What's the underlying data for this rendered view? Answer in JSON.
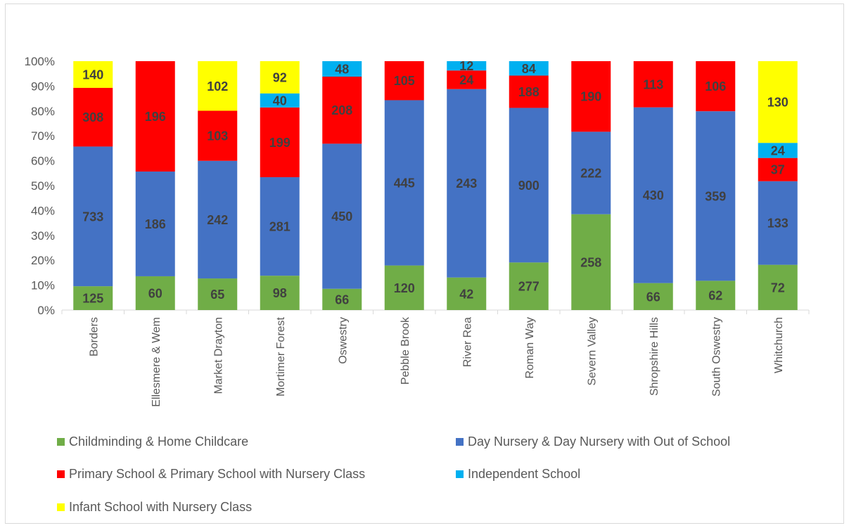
{
  "chart_data": {
    "type": "bar",
    "stacked": true,
    "normalized": true,
    "categories": [
      "Borders",
      "Ellesmere & Wem",
      "Market Drayton",
      "Mortimer Forest",
      "Oswestry",
      "Pebble Brook",
      "River Rea",
      "Roman Way",
      "Severn Valley",
      "Shropshire Hills",
      "South Oswestry",
      "Whitchurch"
    ],
    "series": [
      {
        "name": "Childminding & Home Childcare",
        "color": "#70ad47",
        "values": [
          125,
          60,
          65,
          98,
          66,
          120,
          42,
          277,
          258,
          66,
          62,
          72
        ]
      },
      {
        "name": "Day Nursery & Day Nursery with Out of School",
        "color": "#4472c4",
        "values": [
          733,
          186,
          242,
          281,
          450,
          445,
          243,
          900,
          222,
          430,
          359,
          133
        ]
      },
      {
        "name": "Primary School & Primary School with Nursery Class",
        "color": "#ff0000",
        "values": [
          308,
          196,
          103,
          199,
          208,
          105,
          24,
          188,
          190,
          113,
          106,
          37
        ]
      },
      {
        "name": "Independent School",
        "color": "#00b0f0",
        "values": [
          null,
          null,
          null,
          40,
          48,
          null,
          12,
          84,
          null,
          null,
          null,
          24
        ]
      },
      {
        "name": "Infant School with Nursery Class",
        "color": "#ffff00",
        "values": [
          140,
          null,
          102,
          92,
          null,
          null,
          null,
          null,
          null,
          null,
          null,
          130
        ]
      }
    ],
    "y_ticks": [
      "0%",
      "10%",
      "20%",
      "30%",
      "40%",
      "50%",
      "60%",
      "70%",
      "80%",
      "90%",
      "100%"
    ],
    "ylim": [
      0,
      100
    ],
    "legend_position": "bottom",
    "grid": false
  }
}
